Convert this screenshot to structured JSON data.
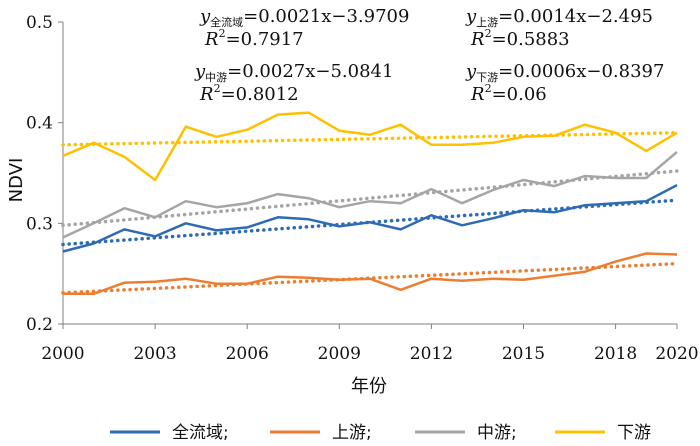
{
  "chart_data": {
    "type": "line",
    "xlabel": "年份",
    "ylabel": "NDVI",
    "xlim": [
      2000,
      2020
    ],
    "ylim": [
      0.2,
      0.5
    ],
    "x_ticks": [
      "2000",
      "2003",
      "2006",
      "2009",
      "2012",
      "2015",
      "2018",
      "2020"
    ],
    "y_ticks": [
      "0.2",
      "0.3",
      "0.4",
      "0.5"
    ],
    "grid": false,
    "legend_position": "bottom",
    "x": [
      2000,
      2001,
      2002,
      2003,
      2004,
      2005,
      2006,
      2007,
      2008,
      2009,
      2010,
      2011,
      2012,
      2013,
      2014,
      2015,
      2016,
      2017,
      2018,
      2019,
      2020
    ],
    "series": [
      {
        "name": "全流域;",
        "color": "#2e6bb5",
        "values": [
          0.272,
          0.28,
          0.294,
          0.287,
          0.3,
          0.293,
          0.296,
          0.306,
          0.304,
          0.297,
          0.301,
          0.294,
          0.308,
          0.298,
          0.305,
          0.313,
          0.311,
          0.318,
          0.32,
          0.322,
          0.338
        ],
        "trend": {
          "start": 0.279,
          "end": 0.323
        }
      },
      {
        "name": "上游;",
        "color": "#ed7d31",
        "values": [
          0.23,
          0.23,
          0.241,
          0.242,
          0.245,
          0.24,
          0.24,
          0.247,
          0.246,
          0.244,
          0.245,
          0.234,
          0.245,
          0.243,
          0.245,
          0.244,
          0.248,
          0.252,
          0.262,
          0.27,
          0.269
        ],
        "trend": {
          "start": 0.231,
          "end": 0.26
        }
      },
      {
        "name": "中游;",
        "color": "#a5a5a5",
        "values": [
          0.286,
          0.3,
          0.315,
          0.306,
          0.322,
          0.316,
          0.32,
          0.329,
          0.325,
          0.316,
          0.322,
          0.32,
          0.334,
          0.32,
          0.333,
          0.343,
          0.337,
          0.347,
          0.345,
          0.345,
          0.371
        ],
        "trend": {
          "start": 0.298,
          "end": 0.352
        }
      },
      {
        "name": "下游",
        "color": "#ffc000",
        "values": [
          0.367,
          0.38,
          0.366,
          0.343,
          0.396,
          0.386,
          0.393,
          0.408,
          0.41,
          0.392,
          0.388,
          0.398,
          0.378,
          0.378,
          0.38,
          0.386,
          0.387,
          0.398,
          0.39,
          0.372,
          0.39
        ],
        "trend": {
          "start": 0.378,
          "end": 0.39
        }
      }
    ],
    "annotations": [
      {
        "sub": "全流域",
        "rhs": "=0.0021x−3.9709",
        "r2": "=0.7917"
      },
      {
        "sub": "上游",
        "rhs": "=0.0014x−2.495",
        "r2": "=0.5883"
      },
      {
        "sub": "中游",
        "rhs": "=0.0027x−5.0841",
        "r2": "=0.8012"
      },
      {
        "sub": "下游",
        "rhs": "=0.0006x−0.8397",
        "r2": "=0.06"
      }
    ]
  }
}
